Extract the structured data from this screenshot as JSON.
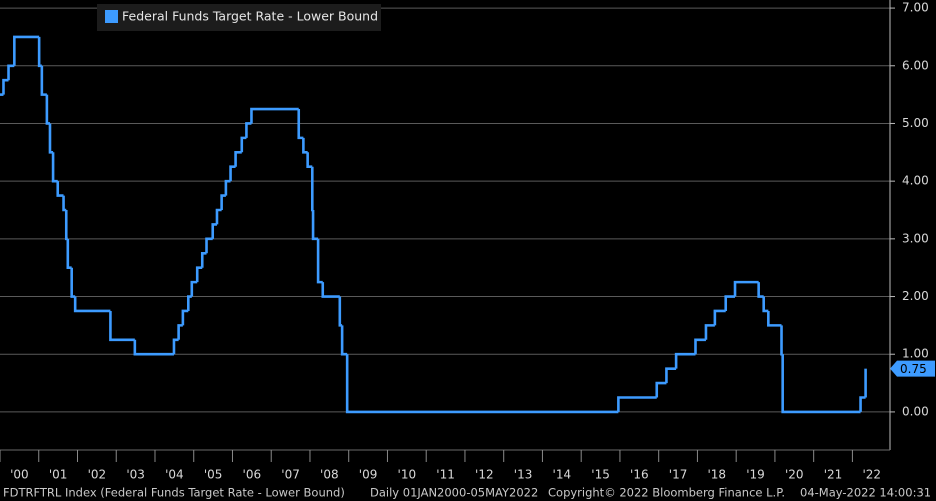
{
  "chart_data": {
    "type": "step",
    "series": [
      {
        "name": "Federal Funds Target Rate - Lower Bound",
        "color": "#3d9bff",
        "x": [
          2000.0,
          2000.09,
          2000.22,
          2000.37,
          2001.01,
          2001.08,
          2001.21,
          2001.29,
          2001.37,
          2001.49,
          2001.64,
          2001.71,
          2001.75,
          2001.85,
          2001.94,
          2002.85,
          2003.48,
          2004.49,
          2004.61,
          2004.72,
          2004.86,
          2004.95,
          2005.09,
          2005.22,
          2005.33,
          2005.49,
          2005.6,
          2005.72,
          2005.83,
          2005.95,
          2006.08,
          2006.24,
          2006.36,
          2006.49,
          2007.71,
          2007.83,
          2007.94,
          2008.06,
          2008.08,
          2008.21,
          2008.33,
          2008.77,
          2008.83,
          2008.96,
          2015.96,
          2016.95,
          2017.2,
          2017.45,
          2017.95,
          2018.22,
          2018.45,
          2018.73,
          2018.97,
          2019.58,
          2019.71,
          2019.83,
          2020.17,
          2020.2,
          2022.21,
          2022.34
        ],
        "values": [
          5.5,
          5.75,
          6.0,
          6.5,
          6.0,
          5.5,
          5.0,
          4.5,
          4.0,
          3.75,
          3.5,
          3.0,
          2.5,
          2.0,
          1.75,
          1.25,
          1.0,
          1.25,
          1.5,
          1.75,
          2.0,
          2.25,
          2.5,
          2.75,
          3.0,
          3.25,
          3.5,
          3.75,
          4.0,
          4.25,
          4.5,
          4.75,
          5.0,
          5.25,
          4.75,
          4.5,
          4.25,
          3.5,
          3.0,
          2.25,
          2.0,
          1.5,
          1.0,
          0.0,
          0.25,
          0.5,
          0.75,
          1.0,
          1.25,
          1.5,
          1.75,
          2.0,
          2.25,
          2.0,
          1.75,
          1.5,
          1.0,
          0.0,
          0.25,
          0.75
        ]
      }
    ],
    "last_value_label": "0.75",
    "xlim": [
      2000,
      2022.97
    ],
    "xticks": [
      {
        "value": 2000,
        "label": "'00"
      },
      {
        "value": 2001,
        "label": "'01"
      },
      {
        "value": 2002,
        "label": "'02"
      },
      {
        "value": 2003,
        "label": "'03"
      },
      {
        "value": 2004,
        "label": "'04"
      },
      {
        "value": 2005,
        "label": "'05"
      },
      {
        "value": 2006,
        "label": "'06"
      },
      {
        "value": 2007,
        "label": "'07"
      },
      {
        "value": 2008,
        "label": "'08"
      },
      {
        "value": 2009,
        "label": "'09"
      },
      {
        "value": 2010,
        "label": "'10"
      },
      {
        "value": 2011,
        "label": "'11"
      },
      {
        "value": 2012,
        "label": "'12"
      },
      {
        "value": 2013,
        "label": "'13"
      },
      {
        "value": 2014,
        "label": "'14"
      },
      {
        "value": 2015,
        "label": "'15"
      },
      {
        "value": 2016,
        "label": "'16"
      },
      {
        "value": 2017,
        "label": "'17"
      },
      {
        "value": 2018,
        "label": "'18"
      },
      {
        "value": 2019,
        "label": "'19"
      },
      {
        "value": 2020,
        "label": "'20"
      },
      {
        "value": 2021,
        "label": "'21"
      },
      {
        "value": 2022,
        "label": "'22"
      }
    ],
    "ylim": [
      -0.66,
      7.14
    ],
    "yticks": [
      {
        "value": 0,
        "label": "0.00"
      },
      {
        "value": 1,
        "label": "1.00"
      },
      {
        "value": 2,
        "label": "2.00"
      },
      {
        "value": 3,
        "label": "3.00"
      },
      {
        "value": 4,
        "label": "4.00"
      },
      {
        "value": 5,
        "label": "5.00"
      },
      {
        "value": 6,
        "label": "6.00"
      },
      {
        "value": 7,
        "label": "7.00"
      }
    ],
    "grid": true,
    "legend": "top-left",
    "footer": [
      "FDTRFTRL Index (Federal Funds Target Rate - Lower Bound)",
      "Daily 01JAN2000-05MAY2022",
      "Copyright© 2022 Bloomberg Finance L.P.",
      "04-May-2022 14:00:31"
    ]
  }
}
